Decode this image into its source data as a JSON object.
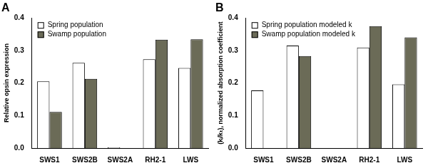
{
  "chart_data": [
    {
      "type": "bar",
      "title": "A",
      "y_label": "Relative opsin expression",
      "categories": [
        "SWS1",
        "SWS2B",
        "SWS2A",
        "RH2-1",
        "LWS"
      ],
      "series": [
        {
          "name": "Spring population",
          "color": "#ffffff",
          "values": [
            0.205,
            0.262,
            0.002,
            0.273,
            0.246
          ]
        },
        {
          "name": "Swamp population",
          "color": "#6b6b57",
          "values": [
            0.111,
            0.213,
            0.0,
            0.333,
            0.334
          ]
        }
      ],
      "ylim": [
        0,
        0.4
      ],
      "yticks": [
        {
          "value": 0,
          "label": "0.0"
        },
        0.1,
        0.2,
        0.3,
        0.4
      ],
      "grid": false,
      "legend": "upper left"
    },
    {
      "type": "bar",
      "title": "B",
      "y_label": "(kᵢ/kₜ), normalized absorption coefficient",
      "categories": [
        "SWS1",
        "SWS2B",
        "SWS2A",
        "RH2-1",
        "LWS"
      ],
      "series": [
        {
          "name": "Spring population modeled k",
          "color": "#ffffff",
          "values": [
            0.177,
            0.315,
            0.0,
            0.309,
            0.196
          ]
        },
        {
          "name": "Swamp population modeled k",
          "color": "#6b6b57",
          "values": [
            0.0,
            0.283,
            0.0,
            0.375,
            0.34
          ]
        }
      ],
      "ylim": [
        0,
        0.4
      ],
      "yticks": [
        {
          "value": 0,
          "label": "0.0"
        },
        0.1,
        0.2,
        0.3,
        0.4
      ],
      "grid": false,
      "legend": "upper left"
    }
  ]
}
